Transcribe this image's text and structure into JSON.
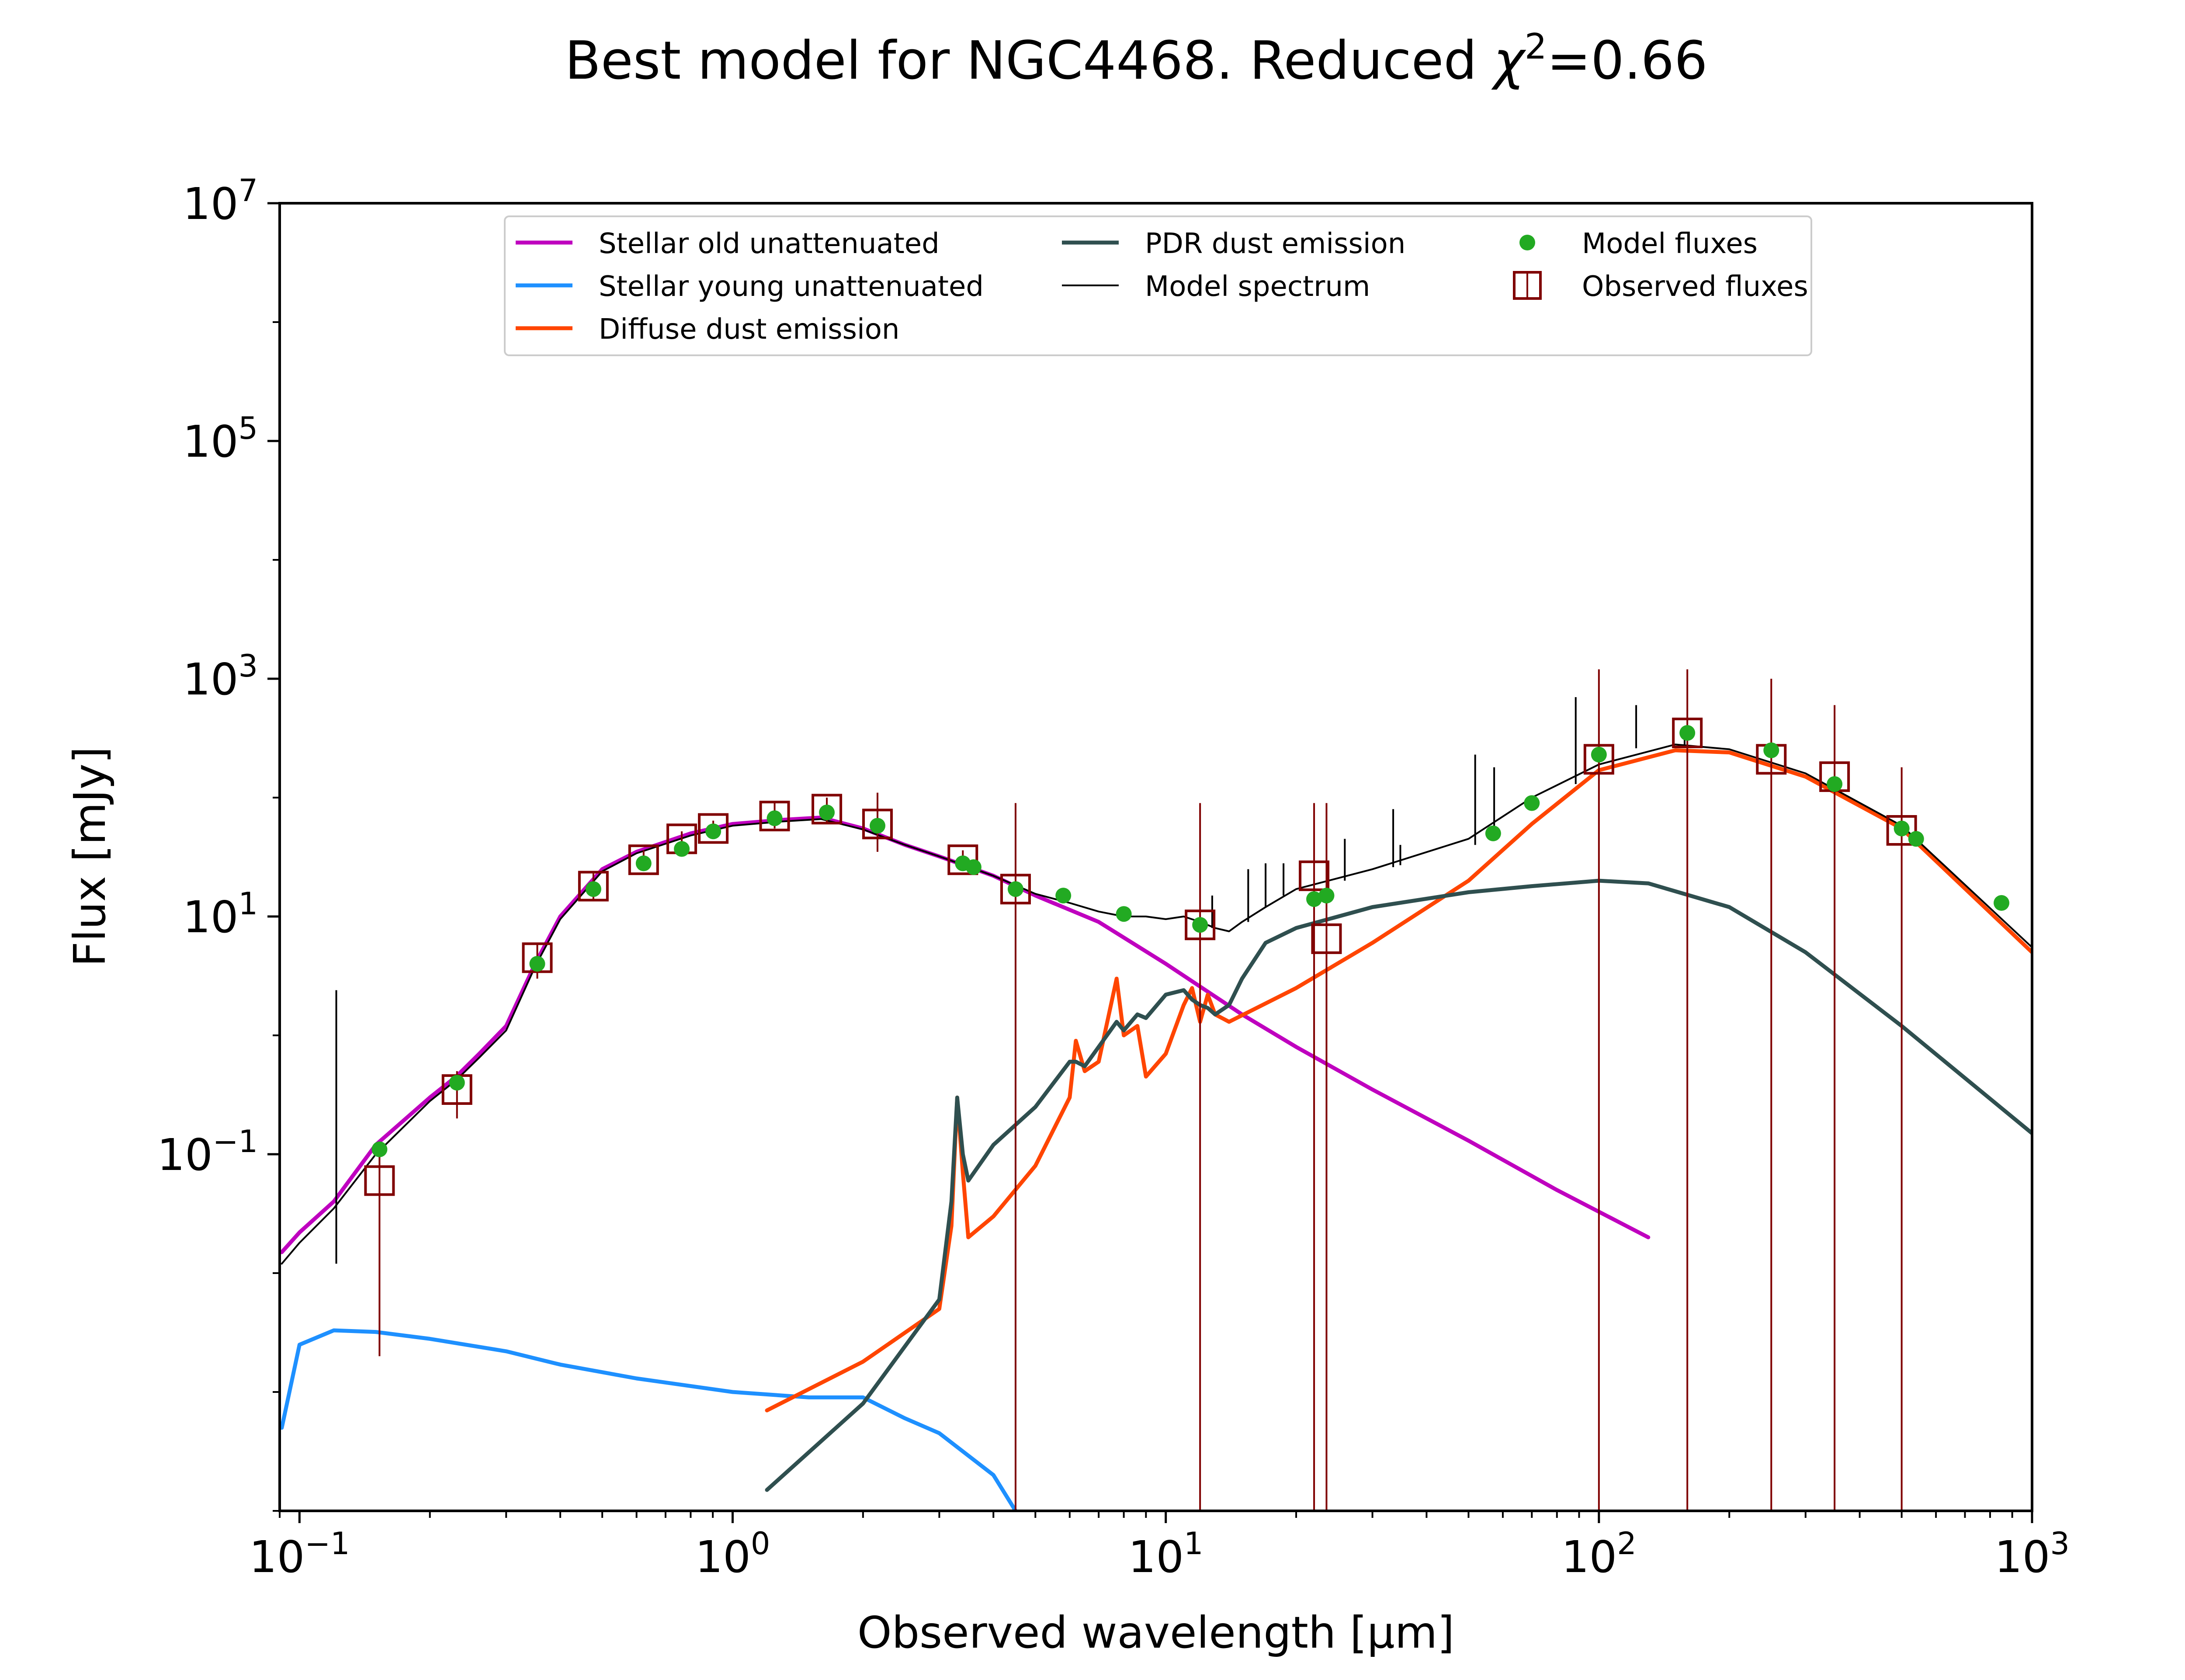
{
  "chart_data": {
    "type": "line",
    "title": "Best model for NGC4468. Reduced χ²=0.66",
    "title_parts": {
      "prefix": "Best model for NGC4468. Reduced ",
      "chi": "χ",
      "sup": "2",
      "suffix": "=0.66"
    },
    "xlabel": "Observed wavelength [μm]",
    "ylabel": "Flux [mJy]",
    "xscale": "log",
    "yscale": "log",
    "xlim": [
      0.09,
      1000
    ],
    "ylim": [
      0.0001,
      10000000
    ],
    "grid": false,
    "legend_position": "upper-center",
    "x_ticks": [
      {
        "value": 0.1,
        "base": "10",
        "exp": "−1"
      },
      {
        "value": 1,
        "base": "10",
        "exp": "0"
      },
      {
        "value": 10,
        "base": "10",
        "exp": "1"
      },
      {
        "value": 100,
        "base": "10",
        "exp": "2"
      },
      {
        "value": 1000,
        "base": "10",
        "exp": "3"
      }
    ],
    "y_ticks": [
      {
        "value": 0.1,
        "base": "10",
        "exp": "−1"
      },
      {
        "value": 10,
        "base": "10",
        "exp": "1"
      },
      {
        "value": 1000,
        "base": "10",
        "exp": "3"
      },
      {
        "value": 100000,
        "base": "10",
        "exp": "5"
      },
      {
        "value": 10000000,
        "base": "10",
        "exp": "7"
      }
    ],
    "series": [
      {
        "name": "Stellar old unattenuated",
        "kind": "line",
        "color": "#bf00bf",
        "x": [
          0.091,
          0.1,
          0.12,
          0.15,
          0.2,
          0.23,
          0.26,
          0.3,
          0.35,
          0.4,
          0.5,
          0.6,
          0.8,
          1.0,
          1.3,
          1.6,
          2.0,
          2.5,
          3.0,
          4.0,
          5.0,
          7.0,
          10,
          15,
          20,
          30,
          50,
          80,
          130
        ],
        "y": [
          0.015,
          0.022,
          0.04,
          0.12,
          0.3,
          0.45,
          0.7,
          1.2,
          4,
          10,
          25,
          35,
          50,
          60,
          65,
          68,
          55,
          40,
          32,
          22,
          15,
          9,
          4,
          1.5,
          0.8,
          0.35,
          0.13,
          0.05,
          0.02
        ]
      },
      {
        "name": "Stellar young unattenuated",
        "kind": "line",
        "color": "#1e90ff",
        "x": [
          0.091,
          0.1,
          0.12,
          0.15,
          0.2,
          0.3,
          0.4,
          0.6,
          1.0,
          1.5,
          2.0,
          2.5,
          3.0,
          4.0,
          4.5
        ],
        "y": [
          0.0005,
          0.0025,
          0.0033,
          0.0032,
          0.0028,
          0.0022,
          0.0017,
          0.0013,
          0.001,
          0.0009,
          0.0009,
          0.0006,
          0.00045,
          0.0002,
          0.0001
        ]
      },
      {
        "name": "Diffuse dust emission",
        "kind": "line",
        "color": "#ff4500",
        "x": [
          1.2,
          2,
          3,
          3.2,
          3.3,
          3.4,
          3.5,
          4,
          5,
          6,
          6.2,
          6.5,
          7,
          7.7,
          8,
          8.6,
          9,
          10,
          11,
          11.5,
          12,
          12.5,
          13,
          14,
          20,
          30,
          50,
          70,
          100,
          150,
          200,
          300,
          500,
          1000
        ],
        "y": [
          0.0007,
          0.0018,
          0.005,
          0.025,
          0.3,
          0.07,
          0.02,
          0.03,
          0.08,
          0.3,
          0.9,
          0.5,
          0.6,
          3,
          1,
          1.2,
          0.45,
          0.7,
          1.8,
          2.5,
          1.3,
          2.2,
          1.5,
          1.3,
          2.5,
          6,
          20,
          60,
          170,
          250,
          240,
          150,
          55,
          5
        ]
      },
      {
        "name": "PDR dust emission",
        "kind": "line",
        "color": "#2f4f4f",
        "x": [
          1.2,
          2,
          3,
          3.2,
          3.3,
          3.4,
          3.5,
          4,
          5,
          6,
          6.2,
          6.5,
          7,
          7.7,
          8,
          8.6,
          9,
          10,
          11,
          11.5,
          12,
          12.5,
          13,
          14,
          15,
          17,
          20,
          30,
          50,
          70,
          100,
          130,
          200,
          300,
          500,
          1000
        ],
        "y": [
          0.00015,
          0.0008,
          0.006,
          0.04,
          0.3,
          0.1,
          0.06,
          0.12,
          0.25,
          0.6,
          0.6,
          0.55,
          0.8,
          1.3,
          1.1,
          1.5,
          1.4,
          2.2,
          2.4,
          2,
          1.8,
          1.7,
          1.5,
          1.8,
          3,
          6,
          8,
          12,
          16,
          18,
          20,
          19,
          12,
          5,
          1.2,
          0.15
        ]
      },
      {
        "name": "Model spectrum",
        "kind": "line",
        "color": "#000000",
        "x": [
          0.091,
          0.1,
          0.12,
          0.15,
          0.2,
          0.23,
          0.26,
          0.3,
          0.35,
          0.4,
          0.5,
          0.6,
          0.8,
          1.0,
          1.3,
          1.6,
          2.0,
          2.5,
          3.0,
          4.0,
          5.0,
          6,
          7,
          8,
          9,
          10,
          11,
          12,
          13,
          14,
          15,
          17,
          20,
          30,
          50,
          70,
          100,
          150,
          200,
          300,
          500,
          1000
        ],
        "y": [
          0.012,
          0.018,
          0.035,
          0.1,
          0.28,
          0.42,
          0.65,
          1.1,
          3.8,
          9.5,
          24,
          34,
          48,
          58,
          63,
          66,
          54,
          40,
          32,
          22,
          15.5,
          13,
          11,
          10,
          10,
          9.5,
          10,
          9,
          8,
          7.5,
          9,
          12,
          17,
          25,
          45,
          100,
          190,
          280,
          255,
          160,
          58,
          5.5
        ]
      }
    ],
    "model_fluxes": {
      "name": "Model fluxes",
      "color": "#22aa22",
      "x": [
        0.153,
        0.231,
        0.354,
        0.477,
        0.623,
        0.763,
        0.902,
        1.25,
        1.65,
        2.16,
        3.4,
        3.6,
        4.5,
        5.8,
        8.0,
        12,
        22,
        23.5,
        57,
        70,
        100,
        160,
        250,
        350,
        500,
        540,
        850
      ],
      "y": [
        0.11,
        0.4,
        4,
        17,
        28,
        37,
        52,
        67,
        75,
        58,
        28,
        26,
        17,
        15,
        10.5,
        8.5,
        14,
        15,
        50,
        90,
        230,
        350,
        250,
        130,
        55,
        45,
        13
      ]
    },
    "observed_fluxes": {
      "name": "Observed fluxes",
      "color": "#800000",
      "x": [
        0.153,
        0.231,
        0.354,
        0.477,
        0.623,
        0.763,
        0.902,
        1.25,
        1.65,
        2.16,
        3.4,
        4.5,
        12,
        22,
        23.5,
        100,
        160,
        250,
        350,
        500
      ],
      "y": [
        0.06,
        0.35,
        4.5,
        18,
        30,
        45,
        55,
        70,
        80,
        60,
        30,
        17,
        8.5,
        22,
        6.5,
        210,
        350,
        210,
        150,
        53
      ],
      "err_lo": [
        0.002,
        0.2,
        3,
        14,
        25,
        38,
        48,
        55,
        60,
        35,
        25,
        0.0001,
        0.0001,
        0.0001,
        0.0001,
        0.0001,
        0.0001,
        0.0001,
        0.0001,
        0.0001
      ],
      "err_hi": [
        0.11,
        0.5,
        6,
        23,
        36,
        52,
        64,
        90,
        100,
        110,
        36,
        90,
        90,
        90,
        90,
        1200,
        1200,
        1000,
        600,
        180
      ]
    },
    "emission_lines": {
      "x": [
        0.1216,
        12.8,
        15.5,
        17.0,
        18.7,
        25.9,
        33.5,
        34.8,
        51.8,
        57.3,
        88.4,
        121.9,
        157.7
      ],
      "y_base": [
        0.012,
        8,
        9,
        12,
        15,
        20,
        26,
        27,
        40,
        48,
        130,
        260,
        280
      ],
      "y_top": [
        2.4,
        15,
        25,
        28,
        28,
        45,
        80,
        40,
        230,
        180,
        700,
        600,
        400
      ]
    }
  }
}
